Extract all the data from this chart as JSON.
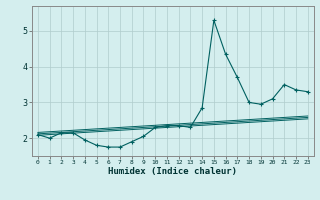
{
  "x": [
    0,
    1,
    2,
    3,
    4,
    5,
    6,
    7,
    8,
    9,
    10,
    11,
    12,
    13,
    14,
    15,
    16,
    17,
    18,
    19,
    20,
    21,
    22,
    23
  ],
  "y_main": [
    2.1,
    2.0,
    2.15,
    2.15,
    1.95,
    1.8,
    1.75,
    1.75,
    1.9,
    2.05,
    2.3,
    2.35,
    2.35,
    2.3,
    2.85,
    5.3,
    4.35,
    3.7,
    3.0,
    2.95,
    3.1,
    3.5,
    3.35,
    3.3
  ],
  "y_trend1": [
    2.08,
    2.1,
    2.12,
    2.14,
    2.16,
    2.18,
    2.2,
    2.22,
    2.24,
    2.26,
    2.28,
    2.3,
    2.32,
    2.34,
    2.36,
    2.38,
    2.4,
    2.42,
    2.44,
    2.46,
    2.48,
    2.5,
    2.52,
    2.54
  ],
  "y_trend2": [
    2.12,
    2.14,
    2.16,
    2.18,
    2.2,
    2.22,
    2.24,
    2.26,
    2.28,
    2.3,
    2.32,
    2.34,
    2.36,
    2.38,
    2.4,
    2.42,
    2.44,
    2.46,
    2.48,
    2.5,
    2.52,
    2.54,
    2.56,
    2.58
  ],
  "y_trend3": [
    2.16,
    2.18,
    2.2,
    2.22,
    2.24,
    2.26,
    2.28,
    2.3,
    2.32,
    2.34,
    2.36,
    2.38,
    2.4,
    2.42,
    2.44,
    2.46,
    2.48,
    2.5,
    2.52,
    2.54,
    2.56,
    2.58,
    2.6,
    2.62
  ],
  "line_color": "#006060",
  "bg_color": "#d4eeee",
  "grid_color": "#b0cccc",
  "xlabel": "Humidex (Indice chaleur)",
  "ylim": [
    1.5,
    5.7
  ],
  "xlim": [
    -0.5,
    23.5
  ],
  "yticks": [
    2,
    3,
    4,
    5
  ],
  "xticks": [
    0,
    1,
    2,
    3,
    4,
    5,
    6,
    7,
    8,
    9,
    10,
    11,
    12,
    13,
    14,
    15,
    16,
    17,
    18,
    19,
    20,
    21,
    22,
    23
  ]
}
